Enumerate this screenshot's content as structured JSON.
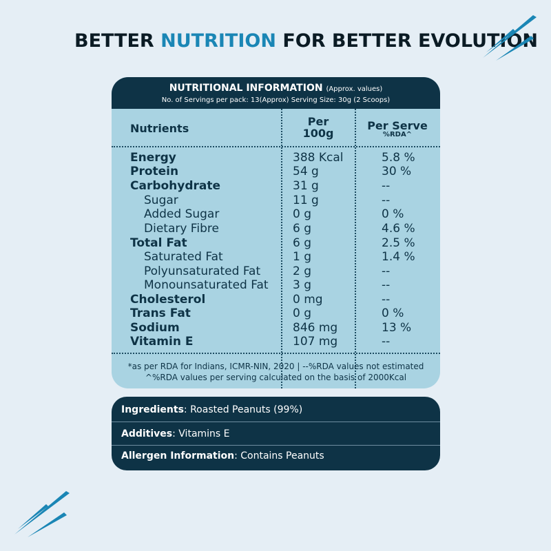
{
  "headline": {
    "part1": "BETTER ",
    "accent": "NUTRITION",
    "part2": " FOR BETTER EVOLUTION"
  },
  "colors": {
    "accent": "#1a86b5",
    "navy": "#0e3346",
    "table_bg": "#a9d3e2",
    "page_bg": "#e5eef5"
  },
  "icons": {
    "top": "speed-streaks-icon",
    "bottom": "speed-streaks-icon"
  },
  "panel": {
    "title": "NUTRITIONAL INFORMATION",
    "title_note": "(Approx. values)",
    "subtitle": "No. of Servings per pack: 13(Approx)  Serving Size: 30g (2 Scoops)",
    "columns": {
      "nutrients": "Nutrients",
      "per100_a": "Per",
      "per100_b": "100g",
      "serve": "Per Serve",
      "serve_sub": "%RDA^"
    },
    "rows": [
      {
        "name": "Energy",
        "value": "388 Kcal",
        "rda": "5.8 %"
      },
      {
        "name": "Protein",
        "value": "54 g",
        "rda": "30 %"
      },
      {
        "name": "Carbohydrate",
        "value": "31 g",
        "rda": "--"
      },
      {
        "name": "Sugar",
        "value": "11 g",
        "rda": "--"
      },
      {
        "name": "Added Sugar",
        "value": "0 g",
        "rda": "0 %"
      },
      {
        "name": "Dietary Fibre",
        "value": "6 g",
        "rda": "4.6 %"
      },
      {
        "name": "Total Fat",
        "value": "6 g",
        "rda": "2.5 %"
      },
      {
        "name": "Saturated Fat",
        "value": "1 g",
        "rda": "1.4 %"
      },
      {
        "name": "Polyunsaturated Fat",
        "value": "2 g",
        "rda": "--"
      },
      {
        "name": "Monounsaturated Fat",
        "value": "3 g",
        "rda": "--"
      },
      {
        "name": "Cholesterol",
        "value": "0 mg",
        "rda": "--"
      },
      {
        "name": "Trans Fat",
        "value": "0 g",
        "rda": "0 %"
      },
      {
        "name": "Sodium",
        "value": "846 mg",
        "rda": "13 %"
      },
      {
        "name": "Vitamin E",
        "value": "107 mg",
        "rda": "--"
      }
    ],
    "footnote1": "*as per RDA for Indians, ICMR-NIN, 2020  |  --%RDA values not estimated",
    "footnote2": "^%RDA values per serving calculated on the basis of 2000Kcal"
  },
  "info": {
    "ingredients_label": "Ingredients",
    "ingredients_value": ": Roasted Peanuts (99%)",
    "additives_label": "Additives",
    "additives_value": ": Vitamins E",
    "allergen_label": "Allergen Information",
    "allergen_value": ": Contains Peanuts"
  }
}
